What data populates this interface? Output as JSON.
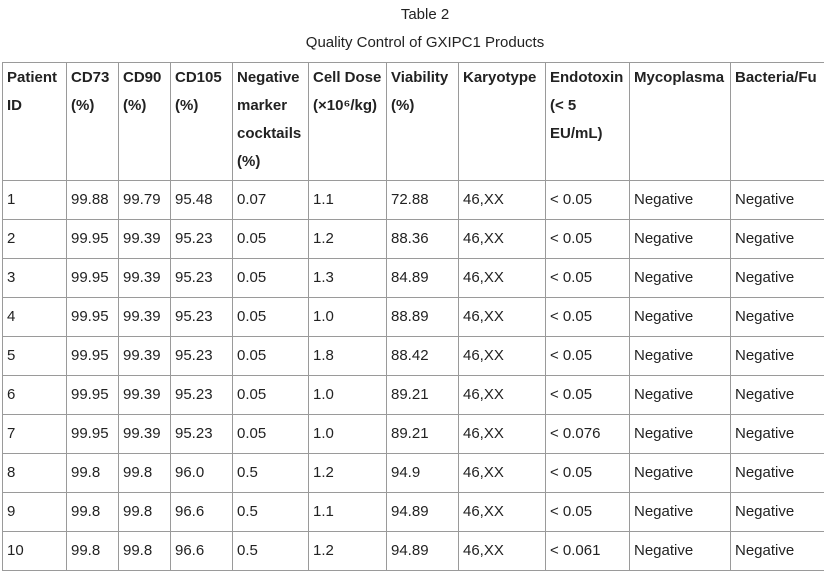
{
  "header": {
    "title": "Table 2",
    "subtitle": "Quality Control of GXIPC1 Products"
  },
  "table": {
    "columns": [
      "Patient ID",
      "CD73 (%)",
      "CD90 (%)",
      "CD105 (%)",
      "Negative marker cocktails (%)",
      "Cell Dose (×10⁶/kg)",
      "Viability (%)",
      "Karyotype",
      "Endotoxin (< 5 EU/mL)",
      "Mycoplasma",
      "Bacteria/Fu"
    ],
    "rows": [
      [
        "1",
        "99.88",
        "99.79",
        "95.48",
        "0.07",
        "1.1",
        "72.88",
        "46,XX",
        "< 0.05",
        "Negative",
        "Negative"
      ],
      [
        "2",
        "99.95",
        "99.39",
        "95.23",
        "0.05",
        "1.2",
        "88.36",
        "46,XX",
        "< 0.05",
        "Negative",
        "Negative"
      ],
      [
        "3",
        "99.95",
        "99.39",
        "95.23",
        "0.05",
        "1.3",
        "84.89",
        "46,XX",
        "< 0.05",
        "Negative",
        "Negative"
      ],
      [
        "4",
        "99.95",
        "99.39",
        "95.23",
        "0.05",
        "1.0",
        "88.89",
        "46,XX",
        "< 0.05",
        "Negative",
        "Negative"
      ],
      [
        "5",
        "99.95",
        "99.39",
        "95.23",
        "0.05",
        "1.8",
        "88.42",
        "46,XX",
        "< 0.05",
        "Negative",
        "Negative"
      ],
      [
        "6",
        "99.95",
        "99.39",
        "95.23",
        "0.05",
        "1.0",
        "89.21",
        "46,XX",
        "< 0.05",
        "Negative",
        "Negative"
      ],
      [
        "7",
        "99.95",
        "99.39",
        "95.23",
        "0.05",
        "1.0",
        "89.21",
        "46,XX",
        "< 0.076",
        "Negative",
        "Negative"
      ],
      [
        "8",
        "99.8",
        "99.8",
        "96.0",
        "0.5",
        "1.2",
        "94.9",
        "46,XX",
        "< 0.05",
        "Negative",
        "Negative"
      ],
      [
        "9",
        "99.8",
        "99.8",
        "96.6",
        "0.5",
        "1.1",
        "94.89",
        "46,XX",
        "< 0.05",
        "Negative",
        "Negative"
      ],
      [
        "10",
        "99.8",
        "99.8",
        "96.6",
        "0.5",
        "1.2",
        "94.89",
        "46,XX",
        "< 0.061",
        "Negative",
        "Negative"
      ]
    ]
  }
}
